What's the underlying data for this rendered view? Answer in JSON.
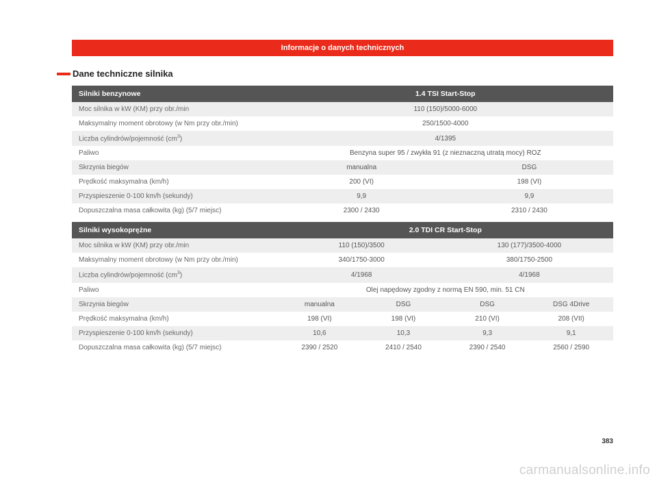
{
  "page": {
    "titleBar": "Informacje o danych technicznych",
    "sectionTitle": "Dane techniczne silnika",
    "pageNumber": "383",
    "watermark": "carmanualsonline.info"
  },
  "table1": {
    "header": {
      "left": "Silniki benzynowe",
      "right": "1.4 TSI Start-Stop"
    },
    "rows": {
      "r0": {
        "label": "Moc silnika w kW (KM) przy obr./min",
        "v": "110 (150)/5000-6000"
      },
      "r1": {
        "label": "Maksymalny moment obrotowy (w Nm przy obr./min)",
        "v": "250/1500-4000"
      },
      "r2": {
        "labelA": "Liczba cylindrów/pojemność (cm",
        "labelB": ")",
        "v": "4/1395"
      },
      "r3": {
        "label": "Paliwo",
        "v": "Benzyna super 95 / zwykła 91 (z nieznaczną utratą mocy) ROZ"
      },
      "r4": {
        "label": "Skrzynia biegów",
        "v0": "manualna",
        "v1": "DSG"
      },
      "r5": {
        "label": "Prędkość maksymalna (km/h)",
        "v0": "200 (VI)",
        "v1": "198 (VI)"
      },
      "r6": {
        "label": "Przyspieszenie 0-100 km/h (sekundy)",
        "v0": "9,9",
        "v1": "9,9"
      },
      "r7": {
        "label": "Dopuszczalna masa całkowita (kg) (5/7 miejsc)",
        "v0": "2300 / 2430",
        "v1": "2310 / 2430"
      }
    }
  },
  "table2": {
    "header": {
      "left": "Silniki wysokoprężne",
      "right": "2.0 TDI CR Start-Stop"
    },
    "rows": {
      "r0": {
        "label": "Moc silnika w kW (KM) przy obr./min",
        "v0": "110 (150)/3500",
        "v1": "130 (177)/3500-4000"
      },
      "r1": {
        "label": "Maksymalny moment obrotowy (w Nm przy obr./min)",
        "v0": "340/1750-3000",
        "v1": "380/1750-2500"
      },
      "r2": {
        "labelA": "Liczba cylindrów/pojemność (cm",
        "labelB": ")",
        "v0": "4/1968",
        "v1": "4/1968"
      },
      "r3": {
        "label": "Paliwo",
        "v": "Olej napędowy zgodny z normą EN 590, min. 51 CN"
      },
      "r4": {
        "label": "Skrzynia biegów",
        "v0": "manualna",
        "v1": "DSG",
        "v2": "DSG",
        "v3": "DSG 4Drive"
      },
      "r5": {
        "label": "Prędkość maksymalna (km/h)",
        "v0": "198 (VI)",
        "v1": "198 (VI)",
        "v2": "210 (VI)",
        "v3": "208 (VII)"
      },
      "r6": {
        "label": "Przyspieszenie 0-100 km/h (sekundy)",
        "v0": "10,6",
        "v1": "10,3",
        "v2": "9,3",
        "v3": "9,1"
      },
      "r7": {
        "label": "Dopuszczalna masa całkowita (kg) (5/7 miejsc)",
        "v0": "2390 / 2520",
        "v1": "2410 / 2540",
        "v2": "2390 / 2540",
        "v3": "2560 / 2590"
      }
    }
  }
}
